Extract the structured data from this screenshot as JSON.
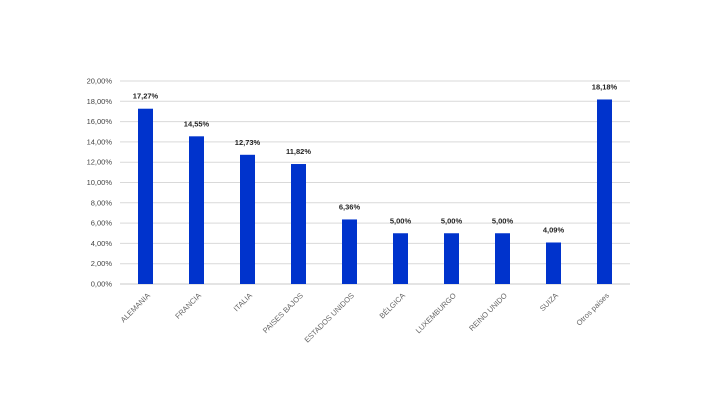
{
  "chart_data": {
    "type": "bar",
    "title": "",
    "xlabel": "",
    "ylabel": "",
    "categories": [
      "ALEMANIA",
      "FRANCIA",
      "ITALIA",
      "PAISES BAJOS",
      "ESTADOS UNIDOS",
      "BÉLGICA",
      "LUXEMBURGO",
      "REINO UNIDO",
      "SUIZA",
      "Otros países"
    ],
    "values": [
      17.27,
      14.55,
      12.73,
      11.82,
      6.36,
      5.0,
      5.0,
      5.0,
      4.09,
      18.18
    ],
    "data_labels": [
      "17,27%",
      "14,55%",
      "12,73%",
      "11,82%",
      "6,36%",
      "5,00%",
      "5,00%",
      "5,00%",
      "4,09%",
      "18,18%"
    ],
    "ylim": [
      0,
      20
    ],
    "y_ticks": [
      0,
      2,
      4,
      6,
      8,
      10,
      12,
      14,
      16,
      18,
      20
    ],
    "y_tick_labels": [
      "0,00%",
      "2,00%",
      "4,00%",
      "6,00%",
      "8,00%",
      "10,00%",
      "12,00%",
      "14,00%",
      "16,00%",
      "18,00%",
      "20,00%"
    ],
    "grid": true,
    "legend": "none",
    "bar_color": "#0033cc"
  }
}
